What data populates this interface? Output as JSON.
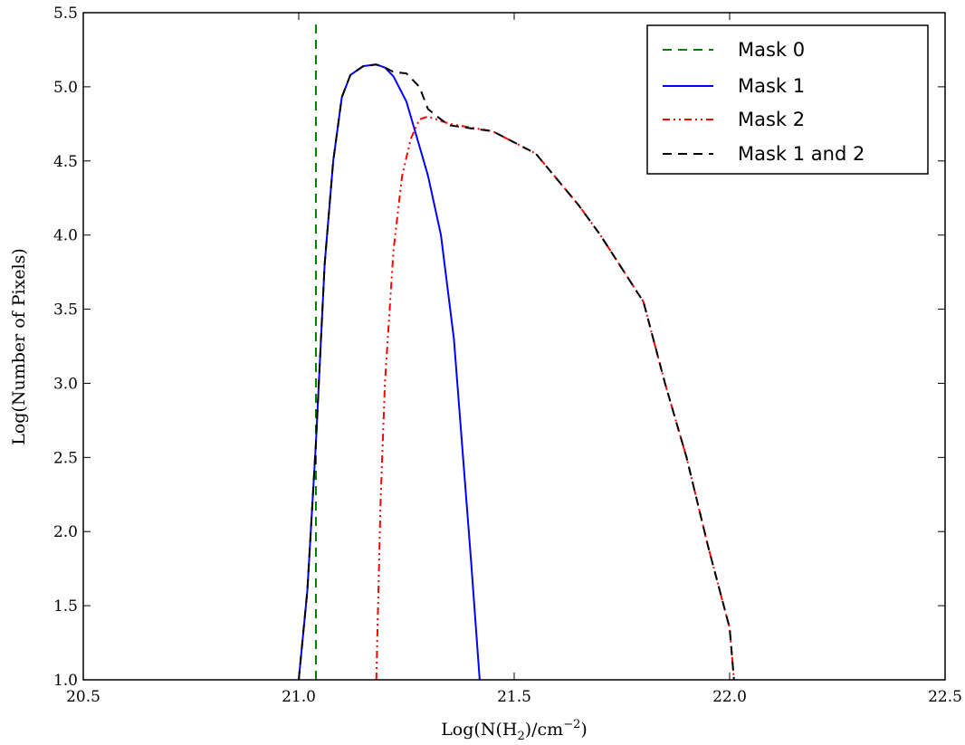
{
  "chart_data": {
    "type": "line",
    "xlabel_parts": [
      "Log(N(H",
      "2",
      ")/cm",
      "−2",
      ")"
    ],
    "ylabel": "Log(Number of Pixels)",
    "xlim": [
      20.5,
      22.5
    ],
    "ylim": [
      1.0,
      5.5
    ],
    "xticks": [
      20.5,
      21.0,
      21.5,
      22.0,
      22.5
    ],
    "xtick_labels": [
      "20.5",
      "21.0",
      "21.5",
      "22.0",
      "22.5"
    ],
    "yticks": [
      1.0,
      1.5,
      2.0,
      2.5,
      3.0,
      3.5,
      4.0,
      4.5,
      5.0,
      5.5
    ],
    "ytick_labels": [
      "1.0",
      "1.5",
      "2.0",
      "2.5",
      "3.0",
      "3.5",
      "4.0",
      "4.5",
      "5.0",
      "5.5"
    ],
    "grid": false,
    "legend_position": "top-right",
    "series": [
      {
        "name": "Mask 0",
        "color": "#008000",
        "style": "dashed",
        "x": [
          21.04,
          21.04
        ],
        "y": [
          1.0,
          5.42
        ]
      },
      {
        "name": "Mask 1",
        "color": "#0000ff",
        "style": "solid",
        "x": [
          21.0,
          21.02,
          21.04,
          21.06,
          21.08,
          21.1,
          21.12,
          21.15,
          21.18,
          21.2,
          21.22,
          21.25,
          21.28,
          21.3,
          21.33,
          21.36,
          21.38,
          21.4,
          21.42
        ],
        "y": [
          1.0,
          1.6,
          2.6,
          3.8,
          4.5,
          4.93,
          5.08,
          5.14,
          5.15,
          5.13,
          5.07,
          4.9,
          4.6,
          4.4,
          4.0,
          3.3,
          2.55,
          1.8,
          1.0
        ]
      },
      {
        "name": "Mask 2",
        "color": "#ff0000",
        "style": "dashdot",
        "x": [
          21.18,
          21.19,
          21.2,
          21.22,
          21.24,
          21.26,
          21.28,
          21.3,
          21.35,
          21.45,
          21.55,
          21.65,
          21.7,
          21.8,
          21.85,
          21.9,
          21.95,
          22.0,
          22.01
        ],
        "y": [
          1.0,
          2.2,
          3.0,
          3.9,
          4.4,
          4.65,
          4.78,
          4.8,
          4.75,
          4.7,
          4.55,
          4.2,
          4.0,
          3.55,
          3.0,
          2.5,
          1.9,
          1.35,
          1.0
        ]
      },
      {
        "name": "Mask 1 and 2",
        "color": "#000000",
        "style": "dashed",
        "x": [
          21.0,
          21.02,
          21.04,
          21.06,
          21.08,
          21.1,
          21.12,
          21.15,
          21.18,
          21.2,
          21.22,
          21.25,
          21.28,
          21.3,
          21.33,
          21.35,
          21.45,
          21.55,
          21.65,
          21.7,
          21.8,
          21.85,
          21.9,
          21.95,
          22.0,
          22.01
        ],
        "y": [
          1.0,
          1.6,
          2.6,
          3.8,
          4.5,
          4.93,
          5.08,
          5.14,
          5.15,
          5.13,
          5.1,
          5.09,
          5.0,
          4.85,
          4.78,
          4.74,
          4.7,
          4.55,
          4.2,
          4.0,
          3.55,
          3.0,
          2.5,
          1.9,
          1.35,
          1.0
        ]
      }
    ]
  }
}
